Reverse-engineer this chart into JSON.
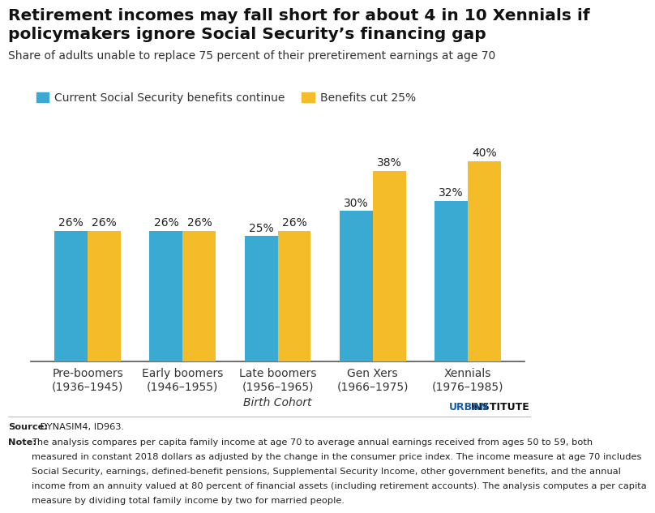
{
  "title_line1": "Retirement incomes may fall short for about 4 in 10 Xennials if",
  "title_line2": "policymakers ignore Social Security’s financing gap",
  "subtitle": "Share of adults unable to replace 75 percent of their preretirement earnings at age 70",
  "categories": [
    "Pre-boomers\n(1936–1945)",
    "Early boomers\n(1946–1955)",
    "Late boomers\n(1956–1965)",
    "Gen Xers\n(1966–1975)",
    "Xennials\n(1976–1985)"
  ],
  "blue_values": [
    26,
    26,
    25,
    30,
    32
  ],
  "orange_values": [
    26,
    26,
    26,
    38,
    40
  ],
  "blue_color": "#3BAAD2",
  "orange_color": "#F5BC2A",
  "legend_blue": "Current Social Security benefits continue",
  "legend_orange": "Benefits cut 25%",
  "xlabel": "Birth Cohort",
  "ylim": [
    0,
    45
  ],
  "bar_width": 0.35,
  "source_bold": "Source:",
  "source_rest": " DYNASIM4, ID963.",
  "note_bold": "Note:",
  "note_body": " The analysis compares per capita family income at age 70 to average annual earnings received from ages 50 to 59, both measured in constant 2018 dollars as adjusted by the change in the consumer price index. The income measure at age 70 includes Social Security, earnings, defined-benefit pensions, Supplemental Security Income, other government benefits, and the annual income from an annuity valued at 80 percent of financial assets (including retirement accounts). The analysis computes a per capita measure by dividing total family income by two for married people.",
  "urban_text_urban": "URBAN",
  "urban_text_institute": "INSTITUTE",
  "urban_color": "#1A5EA8",
  "background_color": "#FFFFFF",
  "title_fontsize": 14.5,
  "subtitle_fontsize": 10,
  "legend_fontsize": 10,
  "label_fontsize": 10,
  "note_fontsize": 8.2,
  "bar_label_fontsize": 10
}
